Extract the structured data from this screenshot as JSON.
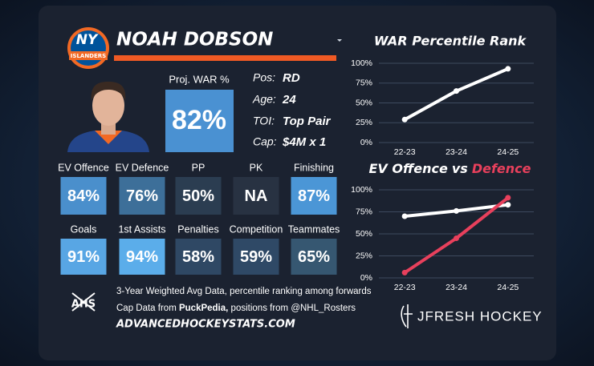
{
  "logo": {
    "text": "NY",
    "subtext": "ISLANDERS"
  },
  "player": {
    "name": "NOAH DOBSON"
  },
  "proj_war": {
    "label": "Proj. WAR %",
    "value": "82%",
    "color": "#4a91d2"
  },
  "bio": [
    {
      "label": "Pos:",
      "value": "RD"
    },
    {
      "label": "Age:",
      "value": 24
    },
    {
      "label": "TOI:",
      "value": "Top Pair"
    },
    {
      "label": "Cap:",
      "value": "$4M x 1"
    }
  ],
  "stats": [
    [
      {
        "label": "EV Offence",
        "value": "84%",
        "color": "#4a8fcc"
      },
      {
        "label": "EV Defence",
        "value": "76%",
        "color": "#3d6f99"
      },
      {
        "label": "PP",
        "value": "50%",
        "color": "#2b3d51"
      },
      {
        "label": "PK",
        "value": "NA",
        "color": "#283242"
      },
      {
        "label": "Finishing",
        "value": "87%",
        "color": "#4b96d6"
      }
    ],
    [
      {
        "label": "Goals",
        "value": "91%",
        "color": "#58a6e4"
      },
      {
        "label": "1st Assists",
        "value": "94%",
        "color": "#5badea"
      },
      {
        "label": "Penalties",
        "value": "58%",
        "color": "#2f4864"
      },
      {
        "label": "Competition",
        "value": "59%",
        "color": "#2f4966"
      },
      {
        "label": "Teammates",
        "value": "65%",
        "color": "#365771"
      }
    ]
  ],
  "footer": {
    "ahs": "AHS",
    "note": "3-Year Weighted Avg Data, percentile ranking among forwards",
    "cap_line": [
      "Cap Data from ",
      "PuckPedia,",
      " positions from @NHL_Rosters"
    ],
    "site": "ADVANCEDHOCKEYSTATS.COM",
    "brand": "JFRESH HOCKEY"
  },
  "chart_data": [
    {
      "type": "line",
      "title": "WAR Percentile Rank",
      "categories": [
        "22-23",
        "23-24",
        "24-25"
      ],
      "values": [
        29,
        65,
        93
      ],
      "color": "#ffffff",
      "ylim": [
        0,
        100
      ],
      "yticks": [
        {
          "value": 0,
          "label": "0%"
        },
        {
          "value": 25,
          "label": "25%"
        },
        {
          "value": 50,
          "label": "50%"
        },
        {
          "value": 75,
          "label": "75%"
        },
        {
          "value": 100,
          "label": "100%"
        }
      ],
      "grid": true
    },
    {
      "type": "line",
      "title_connector": "vs",
      "categories": [
        "22-23",
        "23-24",
        "24-25"
      ],
      "series": [
        {
          "name": "EV Offence",
          "color": "#ffffff",
          "values": [
            70,
            76,
            83
          ]
        },
        {
          "name": "Defence",
          "color": "#e8405c",
          "values": [
            6,
            45,
            91
          ]
        }
      ],
      "ylim": [
        0,
        100
      ],
      "yticks": [
        {
          "value": 0,
          "label": "0%"
        },
        {
          "value": 25,
          "label": "25%"
        },
        {
          "value": 50,
          "label": "50%"
        },
        {
          "value": 75,
          "label": "75%"
        },
        {
          "value": 100,
          "label": "100%"
        }
      ],
      "grid": true
    }
  ]
}
